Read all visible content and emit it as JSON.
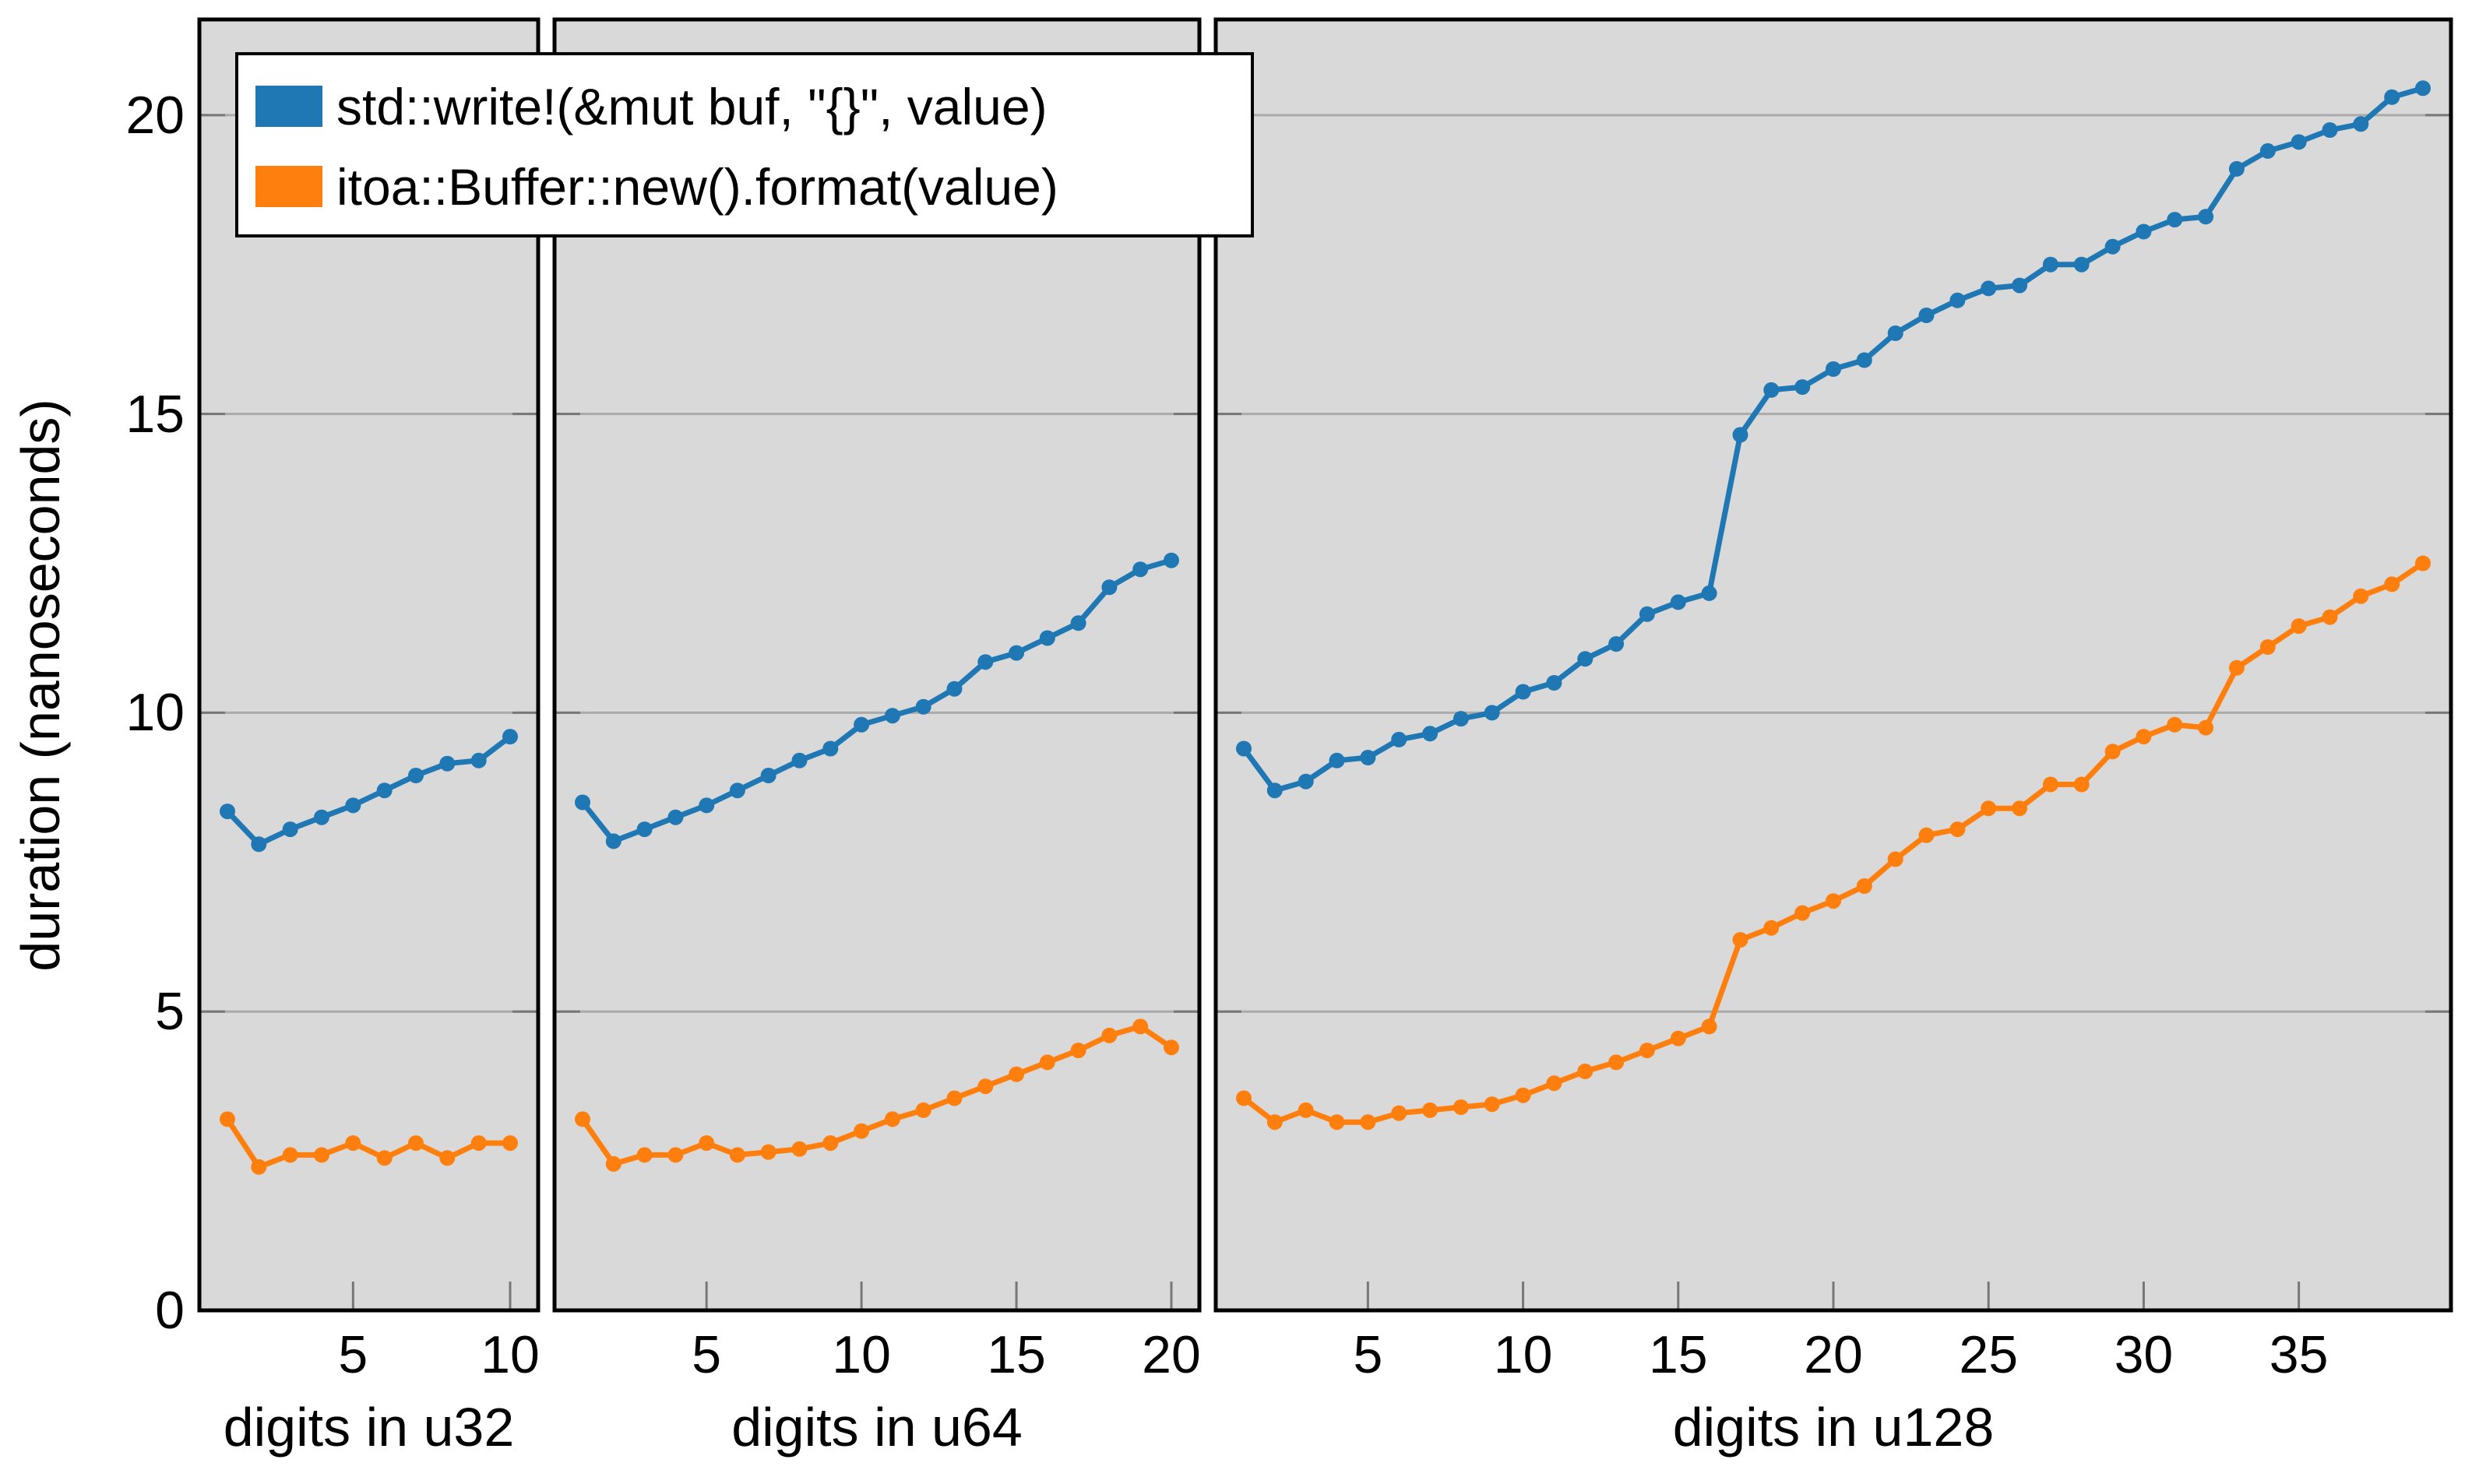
{
  "axis": {
    "ylabel": "duration (nanoseconds)",
    "ylim": [
      0,
      21.6
    ],
    "y_ticks": [
      0,
      5,
      10,
      15,
      20
    ],
    "grid": true,
    "legend_position": "top-left"
  },
  "colors": {
    "std": "#1f77b4",
    "itoa": "#ff7f0e",
    "panel_bg": "#d9d9d9",
    "gridline": "#aaaaaa",
    "spine": "#000000",
    "tick": "#777777"
  },
  "chart_data": [
    {
      "type": "line",
      "xlabel": "digits in u32",
      "x": [
        1,
        2,
        3,
        4,
        5,
        6,
        7,
        8,
        9,
        10
      ],
      "x_ticks": [
        5,
        10
      ],
      "series": [
        {
          "name": "std::write!(&mut buf, \"{}\", value)",
          "color_key": "std",
          "values": [
            8.35,
            7.8,
            8.05,
            8.25,
            8.45,
            8.7,
            8.95,
            9.15,
            9.2,
            9.6
          ]
        },
        {
          "name": "itoa::Buffer::new().format(value)",
          "color_key": "itoa",
          "values": [
            3.2,
            2.4,
            2.6,
            2.6,
            2.8,
            2.55,
            2.8,
            2.55,
            2.8,
            2.8
          ]
        }
      ]
    },
    {
      "type": "line",
      "xlabel": "digits in u64",
      "x": [
        1,
        2,
        3,
        4,
        5,
        6,
        7,
        8,
        9,
        10,
        11,
        12,
        13,
        14,
        15,
        16,
        17,
        18,
        19,
        20
      ],
      "x_ticks": [
        5,
        10,
        15,
        20
      ],
      "series": [
        {
          "name": "std::write!(&mut buf, \"{}\", value)",
          "color_key": "std",
          "values": [
            8.5,
            7.85,
            8.05,
            8.25,
            8.45,
            8.7,
            8.95,
            9.2,
            9.4,
            9.8,
            9.95,
            10.1,
            10.4,
            10.85,
            11.0,
            11.25,
            11.5,
            12.1,
            12.4,
            12.55
          ]
        },
        {
          "name": "itoa::Buffer::new().format(value)",
          "color_key": "itoa",
          "values": [
            3.2,
            2.45,
            2.6,
            2.6,
            2.8,
            2.6,
            2.65,
            2.7,
            2.8,
            3.0,
            3.2,
            3.35,
            3.55,
            3.75,
            3.95,
            4.15,
            4.35,
            4.6,
            4.75,
            4.4
          ]
        }
      ]
    },
    {
      "type": "line",
      "xlabel": "digits in u128",
      "x": [
        1,
        2,
        3,
        4,
        5,
        6,
        7,
        8,
        9,
        10,
        11,
        12,
        13,
        14,
        15,
        16,
        17,
        18,
        19,
        20,
        21,
        22,
        23,
        24,
        25,
        26,
        27,
        28,
        29,
        30,
        31,
        32,
        33,
        34,
        35,
        36,
        37,
        38,
        39
      ],
      "x_ticks": [
        5,
        10,
        15,
        20,
        25,
        30,
        35
      ],
      "series": [
        {
          "name": "std::write!(&mut buf, \"{}\", value)",
          "color_key": "std",
          "values": [
            9.4,
            8.7,
            8.85,
            9.2,
            9.25,
            9.55,
            9.65,
            9.9,
            10.0,
            10.35,
            10.5,
            10.9,
            11.15,
            11.65,
            11.85,
            12.0,
            14.65,
            15.4,
            15.45,
            15.75,
            15.9,
            16.35,
            16.65,
            16.9,
            17.1,
            17.15,
            17.5,
            17.5,
            17.8,
            18.05,
            18.25,
            18.3,
            19.1,
            19.4,
            19.55,
            19.75,
            19.85,
            20.3,
            20.45
          ]
        },
        {
          "name": "itoa::Buffer::new().format(value)",
          "color_key": "itoa",
          "values": [
            3.55,
            3.15,
            3.35,
            3.15,
            3.15,
            3.3,
            3.35,
            3.4,
            3.45,
            3.6,
            3.8,
            4.0,
            4.15,
            4.35,
            4.55,
            4.75,
            6.2,
            6.4,
            6.65,
            6.85,
            7.1,
            7.55,
            7.95,
            8.05,
            8.4,
            8.4,
            8.8,
            8.8,
            9.35,
            9.6,
            9.8,
            9.75,
            10.75,
            11.1,
            11.45,
            11.6,
            11.95,
            12.15,
            12.5
          ]
        }
      ]
    }
  ]
}
